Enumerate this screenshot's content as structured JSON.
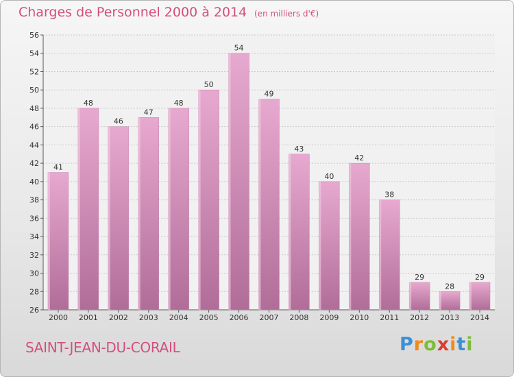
{
  "header": {
    "title": "Charges de Personnel 2000 à 2014",
    "subtitle": "(en milliers d'€)"
  },
  "footer": {
    "location": "SAINT-JEAN-DU-CORAIL",
    "logo": "Proxiti"
  },
  "colors": {
    "bar_top": "#e7a9cf",
    "bar_bottom": "#b06d98",
    "title": "#d24f7f"
  },
  "chart_data": {
    "type": "bar",
    "categories": [
      "2000",
      "2001",
      "2002",
      "2003",
      "2004",
      "2005",
      "2006",
      "2007",
      "2008",
      "2009",
      "2010",
      "2011",
      "2012",
      "2013",
      "2014"
    ],
    "values": [
      41,
      48,
      46,
      47,
      48,
      50,
      54,
      49,
      43,
      40,
      42,
      38,
      29,
      28,
      29
    ],
    "title": "Charges de Personnel 2000 à 2014",
    "ylim": [
      26,
      56
    ],
    "yticks": [
      26,
      28,
      30,
      32,
      34,
      36,
      38,
      40,
      42,
      44,
      46,
      48,
      50,
      52,
      54,
      56
    ],
    "grid": true,
    "data_labels": true
  }
}
